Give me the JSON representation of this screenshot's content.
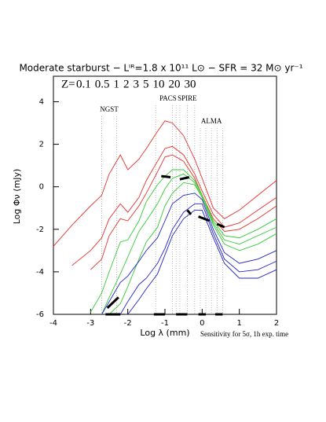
{
  "chart_data": {
    "type": "line",
    "title": "Moderate starburst − Lᴵᴿ=1.8 x 10¹¹ L⊙ − SFR = 32 M⊙ yr⁻¹",
    "legend_prefix": "Z=",
    "x_label": "Log λ (mm)",
    "y_label": "Log Φν (mJy)",
    "xlim": [
      -4,
      2
    ],
    "ylim": [
      -6,
      5.2
    ],
    "xticks": [
      -4,
      -3,
      -2,
      -1,
      0,
      1,
      2
    ],
    "yticks": [
      -6,
      -4,
      -2,
      0,
      2,
      4
    ],
    "x": [
      -4,
      -3.5,
      -3,
      -2.7,
      -2.5,
      -2.2,
      -2,
      -1.7,
      -1.5,
      -1.2,
      -1,
      -0.8,
      -0.5,
      -0.2,
      0,
      0.3,
      0.6,
      1,
      1.5,
      2
    ],
    "series": [
      {
        "name": "0.1",
        "color": "#e8302a",
        "values": [
          -2.8,
          -1.8,
          -0.9,
          -0.4,
          0.6,
          1.5,
          0.8,
          1.3,
          1.8,
          2.6,
          3.1,
          3.0,
          2.4,
          1.3,
          0.4,
          -1.0,
          -1.5,
          -1.1,
          -0.4,
          0.3
        ]
      },
      {
        "name": "0.5",
        "color": "#e8302a",
        "values": [
          null,
          -3.7,
          -3.0,
          -2.4,
          -1.5,
          -0.8,
          -1.2,
          -0.5,
          0.3,
          1.2,
          1.8,
          1.9,
          1.5,
          0.6,
          -0.2,
          -1.3,
          -1.9,
          -1.7,
          -1.1,
          -0.5
        ]
      },
      {
        "name": "1",
        "color": "#e8302a",
        "values": [
          null,
          null,
          -3.9,
          -3.4,
          -2.3,
          -1.5,
          -1.6,
          -0.9,
          -0.3,
          0.7,
          1.4,
          1.5,
          1.2,
          0.4,
          -0.4,
          -1.5,
          -2.1,
          -2.0,
          -1.5,
          -0.9
        ]
      },
      {
        "name": "2",
        "color": "#33cc33",
        "values": [
          null,
          null,
          -5.9,
          -5.0,
          -4.0,
          -2.6,
          -2.5,
          -1.6,
          -0.7,
          0.1,
          0.5,
          0.8,
          0.8,
          0.3,
          -0.4,
          -1.6,
          -2.3,
          -2.4,
          -2.0,
          -1.5
        ]
      },
      {
        "name": "3",
        "color": "#33cc33",
        "values": [
          null,
          null,
          null,
          -6,
          -5.2,
          -4.1,
          -3.3,
          -2.1,
          -1.6,
          -0.8,
          -0.1,
          0.4,
          0.6,
          0.2,
          -0.5,
          -1.7,
          -2.5,
          -2.7,
          -2.3,
          -1.9
        ]
      },
      {
        "name": "5",
        "color": "#33cc33",
        "values": [
          null,
          null,
          null,
          null,
          -6,
          -5.5,
          -4.7,
          -3.4,
          -2.6,
          -1.9,
          -0.9,
          -0.3,
          0.2,
          0.1,
          -0.5,
          -1.8,
          -2.7,
          -3.0,
          -2.7,
          -2.2
        ]
      },
      {
        "name": "10",
        "color": "#2323cc",
        "values": [
          null,
          null,
          null,
          -6,
          -5.4,
          -4.5,
          -4.2,
          -3.5,
          -3.0,
          -2.4,
          -1.6,
          -0.8,
          -0.4,
          -0.3,
          -0.6,
          -2.0,
          -3.1,
          -3.6,
          -3.4,
          -3.0
        ]
      },
      {
        "name": "20",
        "color": "#2323cc",
        "values": [
          null,
          null,
          null,
          null,
          null,
          -6,
          -5.4,
          -4.6,
          -4.3,
          -3.6,
          -2.9,
          -2.0,
          -1.2,
          -0.8,
          -0.8,
          -2.2,
          -3.4,
          -4.0,
          -3.9,
          -3.5
        ]
      },
      {
        "name": "30",
        "color": "#2323cc",
        "values": [
          null,
          null,
          null,
          null,
          null,
          null,
          -6,
          -5.3,
          -4.8,
          -4.1,
          -3.2,
          -2.3,
          -1.5,
          -1.1,
          -1.1,
          -2.4,
          -3.6,
          -4.3,
          -4.3,
          -3.9
        ]
      }
    ],
    "instruments": [
      {
        "name": "NGST",
        "x": [
          -2.7,
          -2.3
        ]
      },
      {
        "name": "PACS",
        "x": [
          -1.25,
          -0.8,
          -0.7
        ]
      },
      {
        "name": "SPIRE",
        "x": [
          -0.6,
          -0.4,
          -0.2
        ]
      },
      {
        "name": "ALMA",
        "x": [
          -0.05,
          0.1,
          0.25,
          0.4,
          0.55
        ]
      }
    ],
    "sensitivity": [
      {
        "x": [
          -2.55,
          -2.25
        ],
        "y": [
          -5.7,
          -5.2
        ]
      },
      {
        "x": [
          -1.1,
          -0.85
        ],
        "y": [
          0.5,
          0.45
        ]
      },
      {
        "x": [
          -0.6,
          -0.35
        ],
        "y": [
          0.35,
          0.45
        ]
      },
      {
        "x": [
          -0.4,
          -0.3
        ],
        "y": [
          -1.1,
          -1.3
        ]
      },
      {
        "x": [
          -0.1,
          0.2
        ],
        "y": [
          -1.4,
          -1.6
        ]
      },
      {
        "x": [
          0.4,
          0.6
        ],
        "y": [
          -1.75,
          -1.9
        ]
      },
      {
        "x": [
          -2.6,
          -2.2
        ],
        "y": [
          -6,
          -6
        ]
      },
      {
        "x": [
          -1.3,
          -1.0
        ],
        "y": [
          -6,
          -6
        ]
      },
      {
        "x": [
          -0.7,
          -0.4
        ],
        "y": [
          -6,
          -6
        ]
      },
      {
        "x": [
          -0.1,
          0.1
        ],
        "y": [
          -6,
          -6
        ]
      },
      {
        "x": [
          0.35,
          0.55
        ],
        "y": [
          -6,
          -6
        ]
      }
    ],
    "sensitivity_label": "Sensitivity for  5σ, 1h exp. time"
  }
}
